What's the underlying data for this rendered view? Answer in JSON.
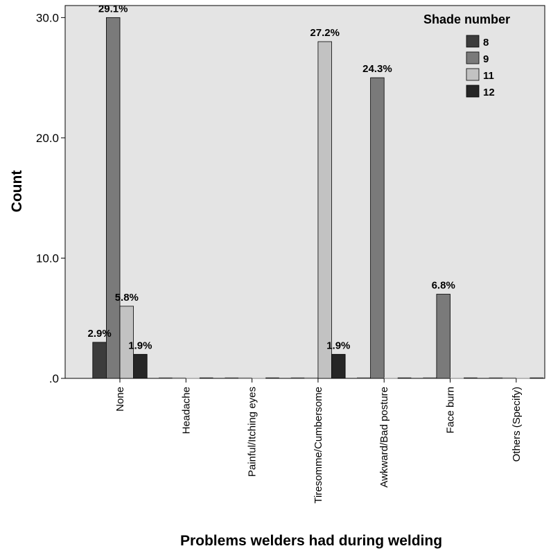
{
  "chart_data": {
    "type": "bar",
    "xlabel": "Problems welders had during welding",
    "ylabel": "Count",
    "ylim": [
      0,
      31
    ],
    "yticks": [
      ".0",
      "10.0",
      "20.0",
      "30.0"
    ],
    "ytick_values": [
      0,
      10,
      20,
      30
    ],
    "grid": false,
    "categories": [
      "None",
      "Headache",
      "Painful/Itching eyes",
      "Tiresomme/Cumbersome",
      "Awkward/Bad posture",
      "Face burn",
      "Others (Specify)"
    ],
    "legend": {
      "title": "Shade number",
      "placement": "top-right"
    },
    "series": [
      {
        "name": "8",
        "color": "#3c3c3c",
        "values": [
          3,
          0,
          0,
          0,
          0,
          0,
          0
        ],
        "labels": [
          "2.9%",
          "",
          "",
          "",
          "",
          "",
          ""
        ]
      },
      {
        "name": "9",
        "color": "#7a7a7a",
        "values": [
          30,
          0,
          0,
          0,
          25,
          7,
          0
        ],
        "labels": [
          "29.1%",
          "",
          "",
          "",
          "24.3%",
          "6.8%",
          ""
        ]
      },
      {
        "name": "11",
        "color": "#c2c2c2",
        "values": [
          6,
          0,
          0,
          28,
          0,
          0,
          0
        ],
        "labels": [
          "5.8%",
          "",
          "",
          "27.2%",
          "",
          "",
          ""
        ]
      },
      {
        "name": "12",
        "color": "#262626",
        "values": [
          2,
          0,
          0,
          2,
          0,
          0,
          0
        ],
        "labels": [
          "1.9%",
          "",
          "",
          "1.9%",
          "",
          "",
          ""
        ]
      }
    ],
    "colors": {
      "plot_background": "#e4e4e4",
      "axis": "#000000"
    }
  }
}
